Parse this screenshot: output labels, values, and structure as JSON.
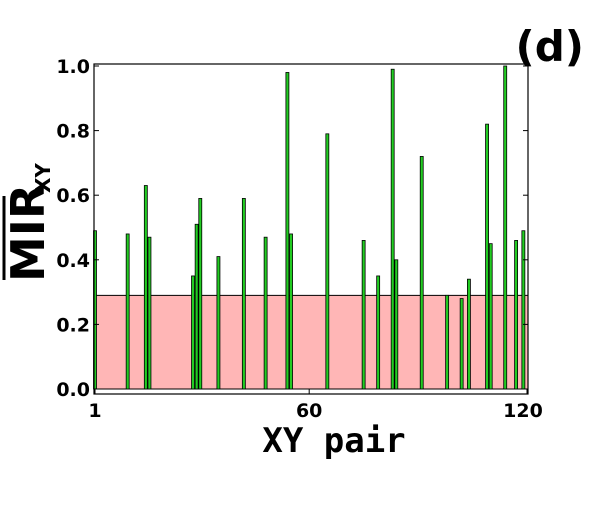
{
  "chart_data": {
    "type": "bar",
    "panel_label": "(d)",
    "xlabel": "XY pair",
    "ylabel_main": "MIR",
    "ylabel_sub": "XY",
    "xlim": [
      1,
      120
    ],
    "ylim": [
      0.0,
      1.0
    ],
    "xticks": [
      1,
      60,
      120
    ],
    "xtick_labels": [
      "1",
      "60",
      "120"
    ],
    "yticks": [
      0.0,
      0.2,
      0.4,
      0.6,
      0.8,
      1.0
    ],
    "ytick_labels": [
      "0.0",
      "0.2",
      "0.4",
      "0.6",
      "0.8",
      "1.0"
    ],
    "threshold": 0.29,
    "threshold_color": "#ffb6b6",
    "bar_color": "#22cc22",
    "grid": false,
    "x": [
      1,
      10,
      15,
      16,
      28,
      29,
      30,
      35,
      42,
      48,
      54,
      55,
      65,
      75,
      79,
      83,
      84,
      91,
      98,
      102,
      104,
      109,
      110,
      114,
      117,
      119
    ],
    "values": [
      0.49,
      0.48,
      0.63,
      0.47,
      0.35,
      0.51,
      0.59,
      0.41,
      0.59,
      0.47,
      0.98,
      0.48,
      0.79,
      0.46,
      0.35,
      0.99,
      0.4,
      0.72,
      0.29,
      0.28,
      0.34,
      0.82,
      0.45,
      1.0,
      0.46,
      0.49
    ]
  }
}
